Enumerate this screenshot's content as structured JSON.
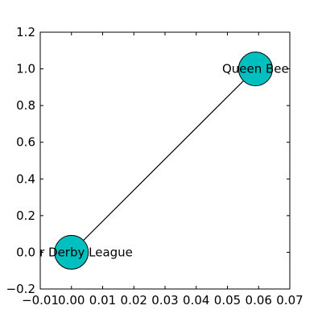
{
  "chart_data": {
    "type": "scatter",
    "title": "",
    "xlabel": "",
    "ylabel": "",
    "xlim": [
      -0.01,
      0.07
    ],
    "ylim": [
      -0.2,
      1.2
    ],
    "xticks": [
      -0.01,
      0.0,
      0.01,
      0.02,
      0.03,
      0.04,
      0.05,
      0.06,
      0.07
    ],
    "xtick_labels": [
      "−0.01",
      "0.00",
      "0.01",
      "0.02",
      "0.03",
      "0.04",
      "0.05",
      "0.06",
      "0.07"
    ],
    "yticks": [
      -0.2,
      0.0,
      0.2,
      0.4,
      0.6,
      0.8,
      1.0,
      1.2
    ],
    "ytick_labels": [
      "−0.2",
      "0.0",
      "0.2",
      "0.4",
      "0.6",
      "0.8",
      "1.0",
      "1.2"
    ],
    "grid": false,
    "node_color": "#00bfbf",
    "edge_color": "#000000",
    "nodes": [
      {
        "label": "Roller Derby League",
        "x": 0.0,
        "y": 0.0
      },
      {
        "label": "Queen Bee",
        "x": 0.059,
        "y": 1.0
      }
    ],
    "edges": [
      {
        "source": 0,
        "target": 1
      }
    ]
  }
}
